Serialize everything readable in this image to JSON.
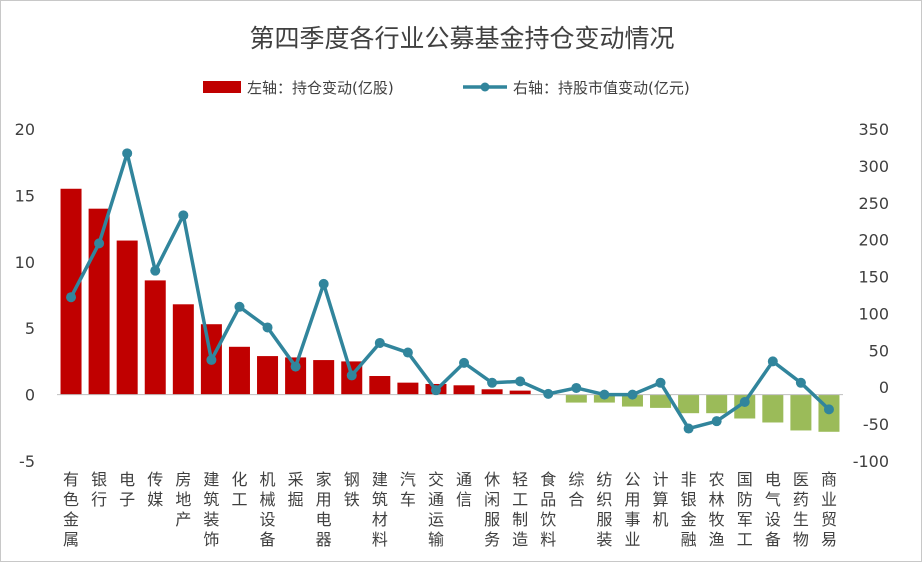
{
  "chart_data": {
    "type": "bar",
    "title": "第四季度各行业公募基金持仓变动情况",
    "xlabel": "",
    "categories": [
      "有色金属",
      "银行",
      "电子",
      "传媒",
      "房地产",
      "建筑装饰",
      "化工",
      "机械设备",
      "采掘",
      "家用电器",
      "钢铁",
      "建筑材料",
      "汽车",
      "交通运输",
      "通信",
      "休闲服务",
      "轻工制造",
      "食品饮料",
      "综合",
      "纺织服装",
      "公用事业",
      "计算机",
      "非银金融",
      "农林牧渔",
      "国防军工",
      "电气设备",
      "医药生物",
      "商业贸易"
    ],
    "series": [
      {
        "name": "左轴：持仓变动(亿股)",
        "type": "bar",
        "axis": "left",
        "values": [
          15.5,
          14.0,
          11.6,
          8.6,
          6.8,
          5.3,
          3.6,
          2.9,
          2.8,
          2.6,
          2.5,
          1.4,
          0.9,
          0.8,
          0.7,
          0.4,
          0.3,
          0.0,
          -0.6,
          -0.6,
          -0.9,
          -1.0,
          -1.4,
          -1.4,
          -1.8,
          -2.1,
          -2.7,
          -2.8
        ]
      },
      {
        "name": "右轴：持股市值变动(亿元)",
        "type": "line",
        "axis": "right",
        "values": [
          122,
          195,
          317,
          158,
          233,
          37,
          109,
          81,
          28,
          140,
          16,
          60,
          47,
          -4,
          33,
          6,
          8,
          -9,
          -1,
          -10,
          -10,
          6,
          -56,
          -46,
          -20,
          35,
          6,
          -30
        ]
      }
    ],
    "left_axis": {
      "ylim": [
        -5,
        20
      ],
      "ticks": [
        "-5",
        "0",
        "5",
        "10",
        "15",
        "20"
      ]
    },
    "right_axis": {
      "ylim": [
        -100,
        350
      ],
      "ticks": [
        "-100",
        "-50",
        "0",
        "50",
        "100",
        "150",
        "200",
        "250",
        "300",
        "350"
      ]
    },
    "grid": false,
    "legend_position": "top-center",
    "colors": {
      "bar_positive": "#C00000",
      "bar_negative": "#9BBB59",
      "line": "#31859C",
      "text": "#404040",
      "title": "#404040"
    }
  }
}
